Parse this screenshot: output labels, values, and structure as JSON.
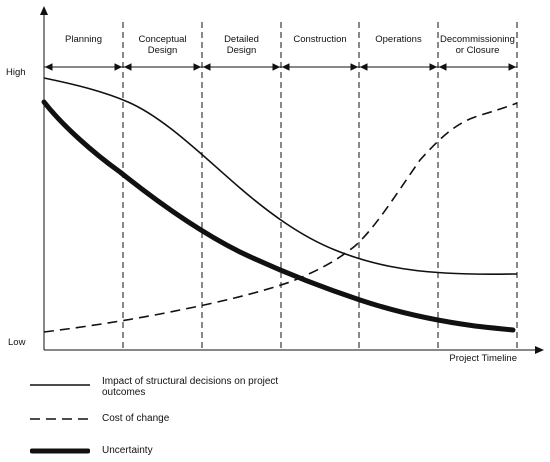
{
  "phases": [
    "Planning",
    "Conceptual\nDesign",
    "Detailed\nDesign",
    "Construction",
    "Operations",
    "Decommissioning\nor Closure"
  ],
  "y_axis": {
    "high_label": "High",
    "low_label": "Low"
  },
  "x_axis": {
    "label": "Project Timeline"
  },
  "legend": [
    {
      "label": "Impact of structural decisions on project outcomes",
      "style": "solid"
    },
    {
      "label": "Cost of change",
      "style": "dashed"
    },
    {
      "label": "Uncertainty",
      "style": "dotted-heavy"
    }
  ],
  "colors": {
    "line": "#111111",
    "background": "#ffffff"
  }
}
